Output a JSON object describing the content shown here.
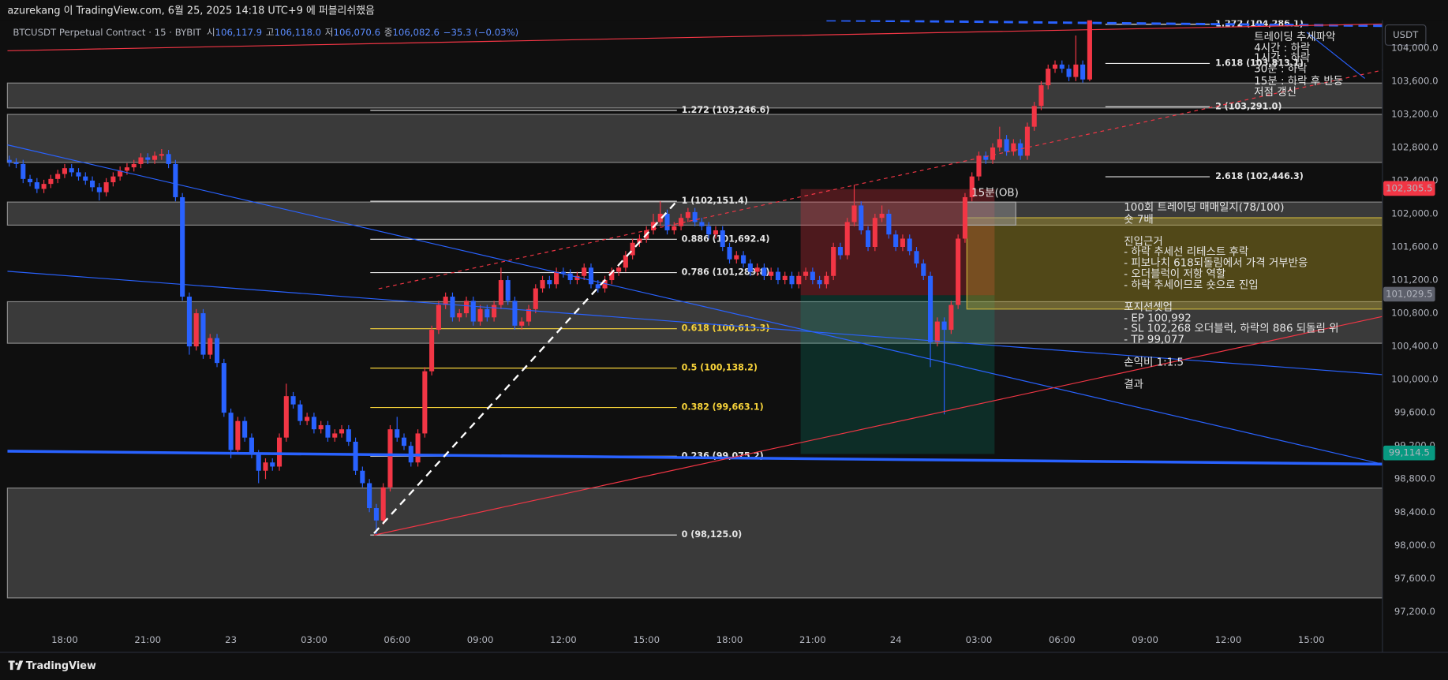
{
  "header": {
    "publisher": "azurekang 이 TradingView.com, 6월 25, 2025 14:18 UTC+9 에 퍼블리쉬했음",
    "symbol": "BTCUSDT Perpetual Contract · 15 · BYBIT",
    "open_label": "시",
    "open": "106,117.9",
    "high_label": "고",
    "high": "106,118.0",
    "low_label": "저",
    "low": "106,070.6",
    "close_label": "종",
    "close": "106,082.6",
    "change": "−35.3 (−0.03%)"
  },
  "footer": "TradingView",
  "chart_data": {
    "type": "candlestick",
    "currency": "USDT",
    "up_color": "#f23645",
    "down_color": "#2962ff",
    "xlim": [
      -0.27,
      198.27
    ],
    "ylim": [
      97010,
      104356
    ],
    "xticks": [
      {
        "value": 8,
        "label": "18:00"
      },
      {
        "value": 20,
        "label": "21:00"
      },
      {
        "value": 32,
        "label": "23"
      },
      {
        "value": 44,
        "label": "03:00"
      },
      {
        "value": 56,
        "label": "06:00"
      },
      {
        "value": 68,
        "label": "09:00"
      },
      {
        "value": 80,
        "label": "12:00"
      },
      {
        "value": 92,
        "label": "15:00"
      },
      {
        "value": 104,
        "label": "18:00"
      },
      {
        "value": 116,
        "label": "21:00"
      },
      {
        "value": 128,
        "label": "24"
      },
      {
        "value": 140,
        "label": "03:00"
      },
      {
        "value": 152,
        "label": "06:00"
      },
      {
        "value": 164,
        "label": "09:00"
      },
      {
        "value": 176,
        "label": "12:00"
      },
      {
        "value": 188,
        "label": "15:00"
      }
    ],
    "yticks": [
      {
        "value": 97200,
        "label": "97,200.0"
      },
      {
        "value": 97600,
        "label": "97,600.0"
      },
      {
        "value": 98000,
        "label": "98,000.0"
      },
      {
        "value": 98400,
        "label": "98,400.0"
      },
      {
        "value": 98800,
        "label": "98,800.0"
      },
      {
        "value": 99200,
        "label": "99,200.0"
      },
      {
        "value": 99600,
        "label": "99,600.0"
      },
      {
        "value": 100000,
        "label": "100,000.0"
      },
      {
        "value": 100400,
        "label": "100,400.0"
      },
      {
        "value": 100800,
        "label": "100,800.0"
      },
      {
        "value": 101200,
        "label": "101,200.0"
      },
      {
        "value": 101600,
        "label": "101,600.0"
      },
      {
        "value": 102000,
        "label": "102,000.0"
      },
      {
        "value": 102400,
        "label": "102,400.0"
      },
      {
        "value": 102800,
        "label": "102,800.0"
      },
      {
        "value": 103200,
        "label": "103,200.0"
      },
      {
        "value": 103600,
        "label": "103,600.0"
      },
      {
        "value": 104000,
        "label": "104,000.0"
      }
    ],
    "ohlc": [
      [
        102650,
        102700,
        102570,
        102620
      ],
      [
        102620,
        102670,
        102550,
        102600
      ],
      [
        102600,
        102650,
        102370,
        102420
      ],
      [
        102420,
        102470,
        102330,
        102380
      ],
      [
        102380,
        102430,
        102250,
        102300
      ],
      [
        102300,
        102410,
        102250,
        102360
      ],
      [
        102360,
        102470,
        102310,
        102420
      ],
      [
        102420,
        102530,
        102370,
        102480
      ],
      [
        102480,
        102600,
        102430,
        102550
      ],
      [
        102550,
        102600,
        102450,
        102500
      ],
      [
        102500,
        102550,
        102400,
        102450
      ],
      [
        102450,
        102500,
        102350,
        102400
      ],
      [
        102400,
        102450,
        102270,
        102320
      ],
      [
        102320,
        102370,
        102160,
        102260
      ],
      [
        102260,
        102430,
        102210,
        102380
      ],
      [
        102380,
        102500,
        102330,
        102450
      ],
      [
        102450,
        102570,
        102400,
        102520
      ],
      [
        102520,
        102610,
        102470,
        102560
      ],
      [
        102560,
        102650,
        102510,
        102600
      ],
      [
        102600,
        102730,
        102550,
        102680
      ],
      [
        102680,
        102730,
        102600,
        102650
      ],
      [
        102650,
        102750,
        102600,
        102700
      ],
      [
        102700,
        102780,
        102650,
        102720
      ],
      [
        102720,
        102770,
        102550,
        102600
      ],
      [
        102600,
        102650,
        102150,
        102200
      ],
      [
        102200,
        102250,
        100950,
        101000
      ],
      [
        101000,
        101050,
        100300,
        100400
      ],
      [
        100400,
        100850,
        100350,
        100800
      ],
      [
        100800,
        100850,
        100250,
        100300
      ],
      [
        100300,
        100550,
        100250,
        100500
      ],
      [
        100500,
        100550,
        100150,
        100200
      ],
      [
        100200,
        100250,
        99550,
        99600
      ],
      [
        99600,
        99650,
        99050,
        99150
      ],
      [
        99150,
        99550,
        99100,
        99500
      ],
      [
        99500,
        99550,
        99250,
        99300
      ],
      [
        99300,
        99350,
        99050,
        99100
      ],
      [
        99100,
        99150,
        98750,
        98900
      ],
      [
        98900,
        99050,
        98800,
        99000
      ],
      [
        99000,
        99050,
        98900,
        98950
      ],
      [
        98950,
        99350,
        98900,
        99300
      ],
      [
        99300,
        99950,
        99250,
        99800
      ],
      [
        99800,
        99850,
        99650,
        99700
      ],
      [
        99700,
        99750,
        99450,
        99500
      ],
      [
        99500,
        99600,
        99450,
        99550
      ],
      [
        99550,
        99600,
        99350,
        99400
      ],
      [
        99400,
        99500,
        99350,
        99450
      ],
      [
        99450,
        99500,
        99250,
        99300
      ],
      [
        99300,
        99400,
        99250,
        99350
      ],
      [
        99350,
        99450,
        99300,
        99400
      ],
      [
        99400,
        99450,
        99200,
        99250
      ],
      [
        99250,
        99300,
        98850,
        98900
      ],
      [
        98900,
        98950,
        98700,
        98750
      ],
      [
        98750,
        98800,
        98400,
        98450
      ],
      [
        98450,
        98500,
        98125,
        98300
      ],
      [
        98300,
        98750,
        98250,
        98700
      ],
      [
        98700,
        99450,
        98650,
        99400
      ],
      [
        99400,
        99550,
        99250,
        99300
      ],
      [
        99300,
        99350,
        99150,
        99200
      ],
      [
        99200,
        99250,
        98950,
        99000
      ],
      [
        99000,
        99400,
        98950,
        99350
      ],
      [
        99350,
        100150,
        99300,
        100100
      ],
      [
        100100,
        100650,
        100050,
        100600
      ],
      [
        100600,
        100950,
        100550,
        100900
      ],
      [
        100900,
        101050,
        100850,
        101000
      ],
      [
        101000,
        101050,
        100700,
        100750
      ],
      [
        100750,
        100850,
        100700,
        100800
      ],
      [
        100800,
        101000,
        100750,
        100950
      ],
      [
        100950,
        101000,
        100650,
        100700
      ],
      [
        100700,
        100900,
        100650,
        100850
      ],
      [
        100850,
        100900,
        100700,
        100750
      ],
      [
        100750,
        100950,
        100700,
        100900
      ],
      [
        100900,
        101350,
        100850,
        101200
      ],
      [
        101200,
        101250,
        100900,
        100950
      ],
      [
        100950,
        101000,
        100600,
        100650
      ],
      [
        100650,
        100750,
        100600,
        100700
      ],
      [
        100700,
        100900,
        100650,
        100850
      ],
      [
        100850,
        101150,
        100800,
        101100
      ],
      [
        101100,
        101250,
        101050,
        101200
      ],
      [
        101200,
        101250,
        101100,
        101150
      ],
      [
        101150,
        101350,
        101100,
        101300
      ],
      [
        101300,
        101350,
        101230,
        101280
      ],
      [
        101280,
        101330,
        101150,
        101200
      ],
      [
        101200,
        101300,
        101150,
        101250
      ],
      [
        101250,
        101400,
        101200,
        101350
      ],
      [
        101350,
        101400,
        101100,
        101150
      ],
      [
        101150,
        101200,
        101050,
        101100
      ],
      [
        101100,
        101250,
        101050,
        101200
      ],
      [
        101200,
        101350,
        101150,
        101300
      ],
      [
        101300,
        101400,
        101250,
        101350
      ],
      [
        101350,
        101550,
        101300,
        101500
      ],
      [
        101500,
        101700,
        101450,
        101650
      ],
      [
        101650,
        101750,
        101600,
        101700
      ],
      [
        101700,
        101850,
        101650,
        101800
      ],
      [
        101800,
        102000,
        101750,
        101900
      ],
      [
        101900,
        102150,
        101850,
        102000
      ],
      [
        102000,
        102050,
        101750,
        101800
      ],
      [
        101800,
        101900,
        101750,
        101850
      ],
      [
        101850,
        102000,
        101800,
        101950
      ],
      [
        101950,
        102070,
        101900,
        102020
      ],
      [
        102020,
        102070,
        101850,
        101900
      ],
      [
        101900,
        101950,
        101800,
        101850
      ],
      [
        101850,
        101900,
        101700,
        101750
      ],
      [
        101750,
        101850,
        101700,
        101800
      ],
      [
        101800,
        101850,
        101550,
        101600
      ],
      [
        101600,
        101650,
        101400,
        101450
      ],
      [
        101450,
        101550,
        101400,
        101500
      ],
      [
        101500,
        101550,
        101350,
        101400
      ],
      [
        101400,
        101450,
        101250,
        101300
      ],
      [
        101300,
        101400,
        101250,
        101350
      ],
      [
        101350,
        101400,
        101200,
        101250
      ],
      [
        101250,
        101350,
        101200,
        101300
      ],
      [
        101300,
        101350,
        101150,
        101200
      ],
      [
        101200,
        101300,
        101150,
        101250
      ],
      [
        101250,
        101300,
        101100,
        101150
      ],
      [
        101150,
        101300,
        101100,
        101250
      ],
      [
        101250,
        101350,
        101200,
        101300
      ],
      [
        101300,
        101350,
        101150,
        101200
      ],
      [
        101200,
        101250,
        101100,
        101150
      ],
      [
        101150,
        101300,
        101100,
        101250
      ],
      [
        101250,
        101650,
        101200,
        101600
      ],
      [
        101600,
        101650,
        101450,
        101500
      ],
      [
        101500,
        101950,
        101450,
        101900
      ],
      [
        101900,
        102350,
        101850,
        102100
      ],
      [
        102100,
        102150,
        101750,
        101800
      ],
      [
        101800,
        101850,
        101550,
        101600
      ],
      [
        101600,
        102000,
        101550,
        101950
      ],
      [
        101950,
        102100,
        101900,
        102000
      ],
      [
        102000,
        102050,
        101700,
        101750
      ],
      [
        101750,
        101800,
        101550,
        101600
      ],
      [
        101600,
        101750,
        101550,
        101700
      ],
      [
        101700,
        101750,
        101500,
        101550
      ],
      [
        101550,
        101600,
        101350,
        101400
      ],
      [
        101400,
        101450,
        101200,
        101250
      ],
      [
        101250,
        101300,
        100150,
        100450
      ],
      [
        100450,
        100750,
        100400,
        100700
      ],
      [
        100700,
        100750,
        99580,
        100600
      ],
      [
        100600,
        100950,
        100550,
        100900
      ],
      [
        100900,
        101750,
        100850,
        101700
      ],
      [
        101700,
        102250,
        101650,
        102200
      ],
      [
        102200,
        102500,
        102150,
        102450
      ],
      [
        102450,
        102750,
        102400,
        102700
      ],
      [
        102700,
        102750,
        102600,
        102650
      ],
      [
        102650,
        102850,
        102600,
        102800
      ],
      [
        102800,
        103050,
        102750,
        102900
      ],
      [
        102900,
        102950,
        102700,
        102750
      ],
      [
        102750,
        102900,
        102700,
        102850
      ],
      [
        102850,
        102900,
        102650,
        102700
      ],
      [
        102700,
        103100,
        102650,
        103050
      ],
      [
        103050,
        103350,
        103000,
        103300
      ],
      [
        103300,
        103600,
        103250,
        103550
      ],
      [
        103550,
        103800,
        103500,
        103750
      ],
      [
        103750,
        103850,
        103700,
        103800
      ],
      [
        103800,
        103850,
        103700,
        103750
      ],
      [
        103750,
        103800,
        103600,
        103650
      ],
      [
        103650,
        104150,
        103600,
        103800
      ],
      [
        103800,
        103850,
        103580,
        103620
      ],
      [
        103620,
        104400,
        103600,
        104380
      ]
    ],
    "fib_left": [
      {
        "value": 103246.6,
        "label": "1.272 (103,246.6)",
        "color": "#e6e6e6"
      },
      {
        "value": 102151.4,
        "label": "1 (102,151.4)",
        "color": "#e6e6e6"
      },
      {
        "value": 101692.4,
        "label": "0.886 (101,692.4)",
        "color": "#e6e6e6"
      },
      {
        "value": 101289.8,
        "label": "0.786 (101,289.8)",
        "color": "#e6e6e6"
      },
      {
        "value": 100613.3,
        "label": "0.618 (100,613.3)",
        "color": "#f7d33a"
      },
      {
        "value": 100138.2,
        "label": "0.5 (100,138.2)",
        "color": "#f7d33a"
      },
      {
        "value": 99663.1,
        "label": "0.382 (99,663.1)",
        "color": "#f7d33a"
      },
      {
        "value": 99075.2,
        "label": "0.236 (99,075.2)",
        "color": "#e6e6e6"
      },
      {
        "value": 98125.0,
        "label": "0 (98,125.0)",
        "color": "#e6e6e6"
      }
    ],
    "fib_right": [
      {
        "value": 104286.1,
        "label": "1.272 (104,286.1)",
        "color": "#e6e6e6"
      },
      {
        "value": 103813.1,
        "label": "1.618 (103,813.1)",
        "color": "#e6e6e6"
      },
      {
        "value": 103291.0,
        "label": "2 (103,291.0)",
        "color": "#e6e6e6"
      },
      {
        "value": 102446.3,
        "label": "2.618 (102,446.3)",
        "color": "#e6e6e6"
      }
    ],
    "price_tags": [
      {
        "value": 102305.5,
        "label": "102,305.5",
        "color": "#f23645"
      },
      {
        "value": 101029.5,
        "label": "101,029.5",
        "color": "#5d606b"
      },
      {
        "value": 99114.5,
        "label": "99,114.5",
        "color": "#089981"
      }
    ],
    "annotations": {
      "ob": "15분(OB)",
      "trend": [
        "트레이딩 추세파악",
        "4시간 : 하락",
        "1시간 : 하락",
        "30분 : 하락",
        "15분 : 하락 후 반등",
        "저점 갱신"
      ],
      "journal": [
        "100회 트레이딩 매매일지(78/100)",
        "숏 7배",
        "진입근거",
        "- 하락 추세선 리테스트 후락",
        "- 피보나치 618되돌림에서 가격 거부반응",
        "- 오더블럭이 저항 역할",
        "- 하락 추세이므로 숏으로 진입",
        "포지션셋업",
        "- EP 100,992",
        "- SL 102,268 오더블럭, 하락의 886 되돌림 위",
        "- TP 99,077",
        "손익비 1:1.5",
        "결과"
      ]
    }
  }
}
